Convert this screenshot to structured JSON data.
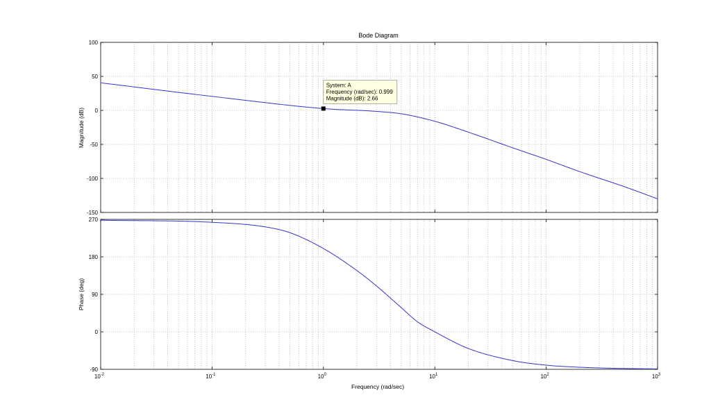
{
  "figure": {
    "title": "Bode Diagram",
    "xlabel": "Frequency  (rad/sec)",
    "colors": {
      "line": "#3333cc",
      "grid": "#b3b3b3",
      "axes": "#000000",
      "datatip_bg": "#ffffe1",
      "datatip_border": "#999999"
    }
  },
  "magnitude": {
    "ylabel": "Magnitude (dB)",
    "yticks": [
      "100",
      "50",
      "0",
      "-50",
      "-100",
      "-150"
    ]
  },
  "phase": {
    "ylabel": "Phase (deg)",
    "yticks": [
      "270",
      "180",
      "90",
      "0",
      "-90"
    ]
  },
  "xticks": [
    {
      "base": "10",
      "exp": "-2"
    },
    {
      "base": "10",
      "exp": "-1"
    },
    {
      "base": "10",
      "exp": "0"
    },
    {
      "base": "10",
      "exp": "1"
    },
    {
      "base": "10",
      "exp": "2"
    },
    {
      "base": "10",
      "exp": "3"
    }
  ],
  "datatip": {
    "line1": "System: A",
    "line2": "Frequency (rad/sec): 0.999",
    "line3": "Magnitude (dB): 2.66"
  },
  "chart_data": [
    {
      "type": "line",
      "title": "Bode Diagram",
      "xlabel": "Frequency  (rad/sec)",
      "ylabel": "Magnitude (dB)",
      "xscale": "log",
      "xlim": [
        0.01,
        1000
      ],
      "ylim": [
        -150,
        100
      ],
      "grid": true,
      "series": [
        {
          "name": "A",
          "x": [
            0.01,
            0.1,
            1,
            3,
            5,
            10,
            20,
            50,
            100,
            200,
            500,
            1000
          ],
          "y": [
            40.5,
            20.6,
            2.66,
            -1.5,
            -5,
            -16,
            -32,
            -55,
            -72,
            -90,
            -112,
            -130
          ]
        }
      ],
      "annotations": [
        {
          "x": 0.999,
          "y": 2.66,
          "text": [
            "System: A",
            "Frequency (rad/sec): 0.999",
            "Magnitude (dB): 2.66"
          ]
        }
      ]
    },
    {
      "type": "line",
      "xlabel": "Frequency  (rad/sec)",
      "ylabel": "Phase (deg)",
      "xscale": "log",
      "xlim": [
        0.01,
        1000
      ],
      "ylim": [
        -90,
        270
      ],
      "grid": true,
      "series": [
        {
          "name": "A",
          "x": [
            0.01,
            0.1,
            0.3,
            0.5,
            1,
            2,
            3,
            5,
            7,
            10,
            20,
            50,
            100,
            200,
            500,
            1000
          ],
          "y": [
            268,
            263,
            252,
            238,
            200,
            147,
            110,
            58,
            24,
            0,
            -40,
            -69,
            -80,
            -85,
            -88,
            -89
          ]
        }
      ]
    }
  ]
}
